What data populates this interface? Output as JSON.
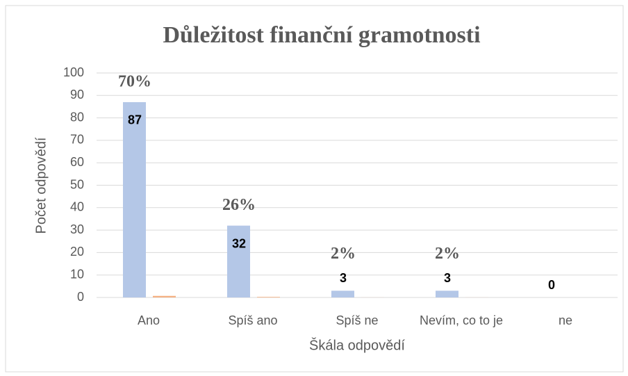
{
  "chart_data": {
    "type": "bar",
    "title": "Důležitost finanční gramotnosti",
    "x_label": "Škála odpovědí",
    "y_label": "Počet odpovědí",
    "categories": [
      "Ano",
      "Spíš ano",
      "Spíš ne",
      "Nevím, co to je",
      "ne"
    ],
    "series": [
      {
        "color": "#b4c7e7",
        "values": [
          87,
          32,
          3,
          3,
          0
        ]
      },
      {
        "color": "#f4b183",
        "values": [
          0.7,
          0.26,
          0.02,
          0.02,
          0
        ],
        "value_labels": [
          "70%",
          "26%",
          "2%",
          "2%",
          null
        ]
      }
    ],
    "ylim": [
      0,
      100
    ],
    "yticks": [
      0,
      10,
      20,
      30,
      40,
      50,
      60,
      70,
      80,
      90,
      100
    ],
    "grid": true
  }
}
